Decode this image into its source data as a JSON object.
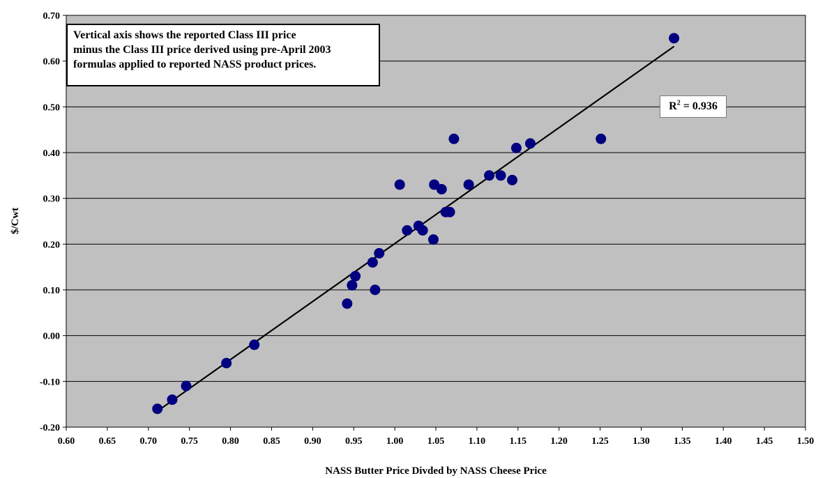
{
  "chart_data": {
    "type": "scatter",
    "title": "",
    "xlabel": "NASS Butter Price Divded by NASS Cheese Price",
    "ylabel": "$/Cwt",
    "xlim": [
      0.6,
      1.5
    ],
    "ylim": [
      -0.2,
      0.7
    ],
    "grid": "horizontal",
    "x_tick_labels": [
      "0.60",
      "0.65",
      "0.70",
      "0.75",
      "0.80",
      "0.85",
      "0.90",
      "0.95",
      "1.00",
      "1.05",
      "1.10",
      "1.15",
      "1.20",
      "1.25",
      "1.30",
      "1.35",
      "1.40",
      "1.45",
      "1.50"
    ],
    "y_tick_labels": [
      "-0.20",
      "-0.10",
      "0.00",
      "0.10",
      "0.20",
      "0.30",
      "0.40",
      "0.50",
      "0.60",
      "0.70"
    ],
    "points": [
      {
        "x": 0.711,
        "y": -0.16
      },
      {
        "x": 0.729,
        "y": -0.14
      },
      {
        "x": 0.746,
        "y": -0.11
      },
      {
        "x": 0.795,
        "y": -0.06
      },
      {
        "x": 0.829,
        "y": -0.02
      },
      {
        "x": 0.942,
        "y": 0.07
      },
      {
        "x": 0.948,
        "y": 0.11
      },
      {
        "x": 0.952,
        "y": 0.13
      },
      {
        "x": 0.973,
        "y": 0.16
      },
      {
        "x": 0.976,
        "y": 0.1
      },
      {
        "x": 0.981,
        "y": 0.18
      },
      {
        "x": 1.006,
        "y": 0.33
      },
      {
        "x": 1.015,
        "y": 0.23
      },
      {
        "x": 1.029,
        "y": 0.24
      },
      {
        "x": 1.034,
        "y": 0.23
      },
      {
        "x": 1.047,
        "y": 0.21
      },
      {
        "x": 1.048,
        "y": 0.33
      },
      {
        "x": 1.057,
        "y": 0.32
      },
      {
        "x": 1.062,
        "y": 0.27
      },
      {
        "x": 1.067,
        "y": 0.27
      },
      {
        "x": 1.072,
        "y": 0.43
      },
      {
        "x": 1.09,
        "y": 0.33
      },
      {
        "x": 1.115,
        "y": 0.35
      },
      {
        "x": 1.129,
        "y": 0.35
      },
      {
        "x": 1.143,
        "y": 0.34
      },
      {
        "x": 1.148,
        "y": 0.41
      },
      {
        "x": 1.165,
        "y": 0.42
      },
      {
        "x": 1.251,
        "y": 0.43
      },
      {
        "x": 1.34,
        "y": 0.65
      }
    ],
    "trendline": {
      "x": [
        0.711,
        1.34
      ],
      "y": [
        -0.165,
        0.632
      ]
    },
    "r_squared_label": "R2 = 0.936",
    "annotation_lines": [
      "Vertical axis shows the reported Class III price",
      "minus the Class III price derived using pre-April 2003",
      "formulas applied to reported NASS product prices."
    ],
    "colors": {
      "plot_area": "#c0c0c0",
      "marker": "#000080",
      "trendline": "#000000",
      "grid": "#000000"
    }
  }
}
